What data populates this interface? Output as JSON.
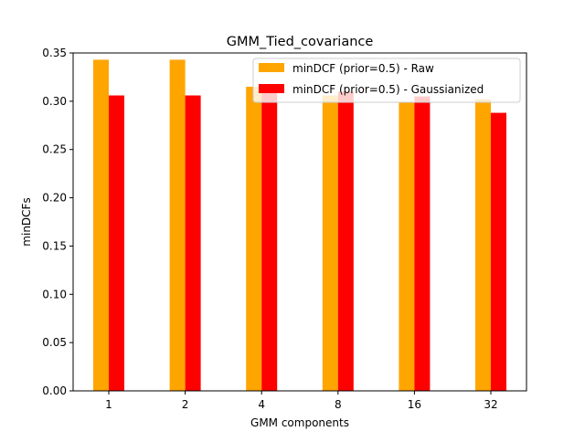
{
  "chart_data": {
    "type": "bar",
    "title": "GMM_Tied_covariance",
    "xlabel": "GMM components",
    "ylabel": "minDCFs",
    "categories": [
      "1",
      "2",
      "4",
      "8",
      "16",
      "32"
    ],
    "series": [
      {
        "name": "minDCF (prior=0.5) - Raw",
        "color": "#ffa500",
        "values": [
          0.343,
          0.343,
          0.315,
          0.306,
          0.299,
          0.302
        ]
      },
      {
        "name": "minDCF (prior=0.5) - Gaussianized",
        "color": "#ff0000",
        "values": [
          0.306,
          0.306,
          0.31,
          0.31,
          0.305,
          0.288
        ]
      }
    ],
    "ylim": [
      0,
      0.35
    ],
    "yticks": [
      0.0,
      0.05,
      0.1,
      0.15,
      0.2,
      0.25,
      0.3,
      0.35
    ],
    "ytick_labels": [
      "0.00",
      "0.05",
      "0.10",
      "0.15",
      "0.20",
      "0.25",
      "0.30",
      "0.35"
    ],
    "grid": false,
    "legend_position": "top-right"
  }
}
